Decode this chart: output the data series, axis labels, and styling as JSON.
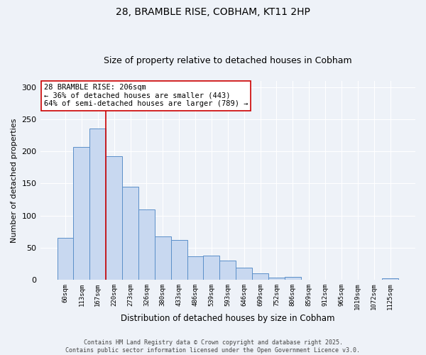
{
  "title1": "28, BRAMBLE RISE, COBHAM, KT11 2HP",
  "title2": "Size of property relative to detached houses in Cobham",
  "xlabel": "Distribution of detached houses by size in Cobham",
  "ylabel": "Number of detached properties",
  "categories": [
    "60sqm",
    "113sqm",
    "167sqm",
    "220sqm",
    "273sqm",
    "326sqm",
    "380sqm",
    "433sqm",
    "486sqm",
    "539sqm",
    "593sqm",
    "646sqm",
    "699sqm",
    "752sqm",
    "806sqm",
    "859sqm",
    "912sqm",
    "965sqm",
    "1019sqm",
    "1072sqm",
    "1125sqm"
  ],
  "values": [
    65,
    207,
    236,
    193,
    145,
    110,
    67,
    62,
    37,
    38,
    30,
    19,
    10,
    3,
    4,
    0,
    0,
    0,
    0,
    0,
    2
  ],
  "bar_color": "#c8d8f0",
  "bar_edge_color": "#5b8fc9",
  "bg_color": "#eef2f8",
  "grid_color": "#ffffff",
  "vline_x_idx": 3,
  "vline_color": "#cc0000",
  "annotation_text": "28 BRAMBLE RISE: 206sqm\n← 36% of detached houses are smaller (443)\n64% of semi-detached houses are larger (789) →",
  "annotation_box_color": "#ffffff",
  "annotation_box_edge": "#cc0000",
  "ylim": [
    0,
    310
  ],
  "yticks": [
    0,
    50,
    100,
    150,
    200,
    250,
    300
  ],
  "footer": "Contains HM Land Registry data © Crown copyright and database right 2025.\nContains public sector information licensed under the Open Government Licence v3.0."
}
